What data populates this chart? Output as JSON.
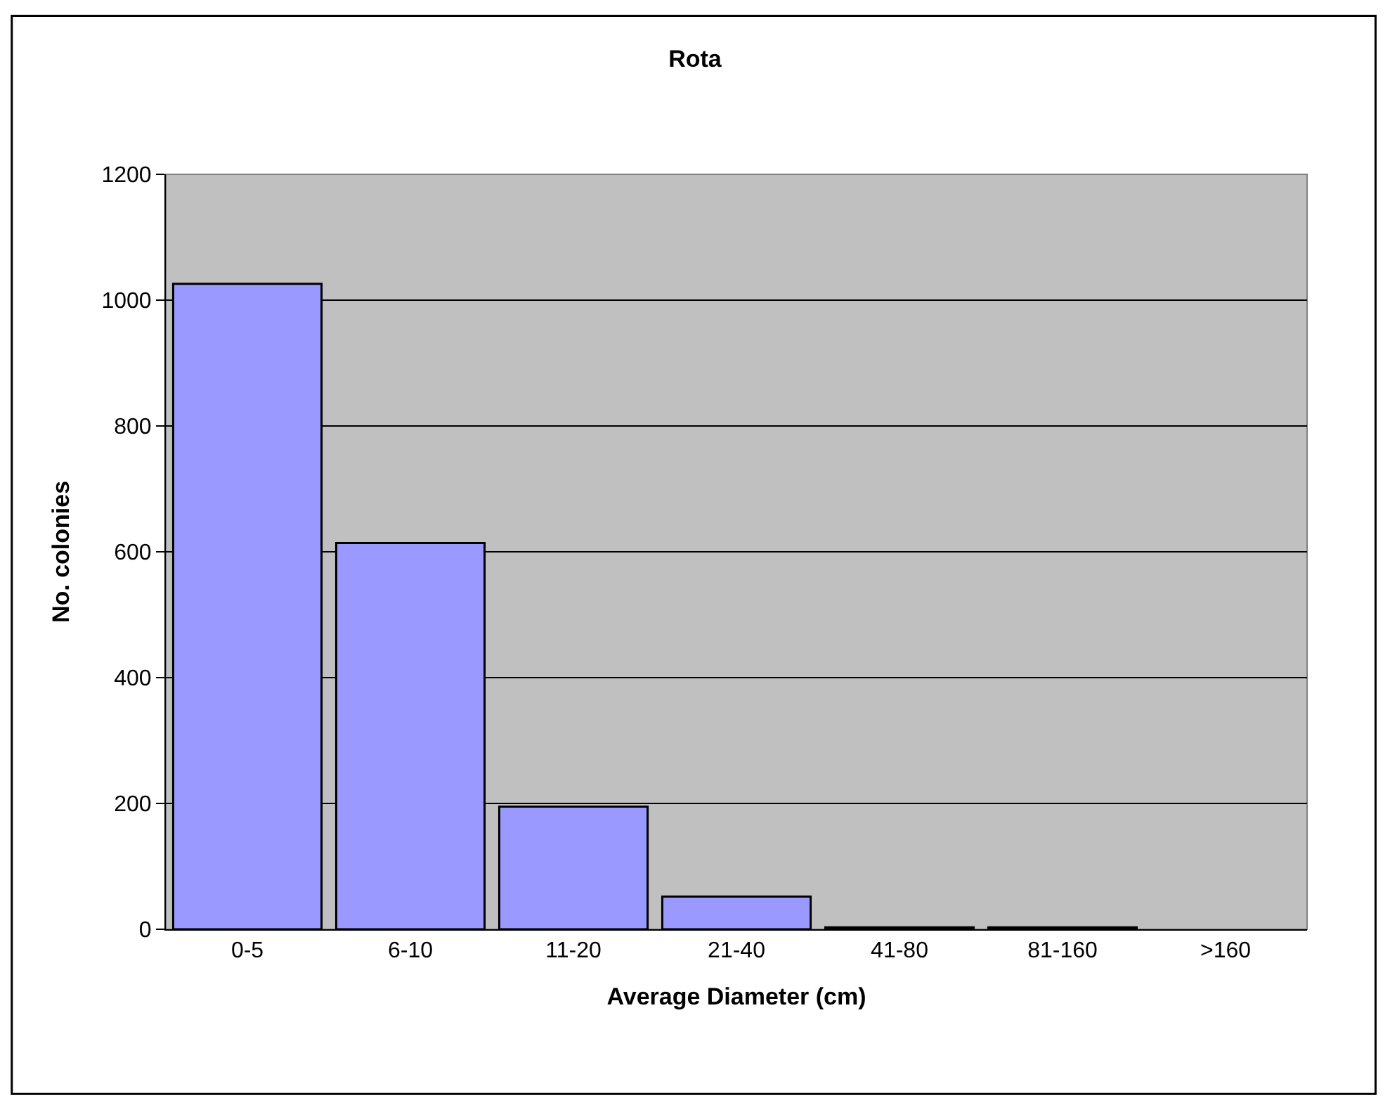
{
  "chart_data": {
    "type": "bar",
    "title": "Rota",
    "xlabel": "Average Diameter (cm)",
    "ylabel": "No. colonies",
    "categories": [
      "0-5",
      "6-10",
      "11-20",
      "21-40",
      "41-80",
      "81-160",
      ">160"
    ],
    "values": [
      1026,
      614,
      195,
      52,
      3,
      3,
      0
    ],
    "color": "#9999ff",
    "ylim": [
      0,
      1200
    ],
    "yticks": [
      0,
      200,
      400,
      600,
      800,
      1000,
      1200
    ],
    "grid": "y",
    "legend": false
  }
}
